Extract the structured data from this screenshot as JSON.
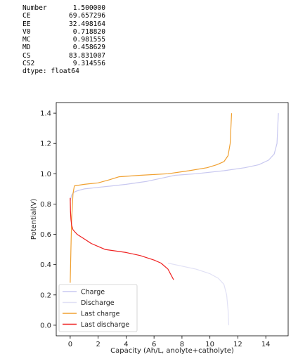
{
  "output": {
    "rows": [
      {
        "key": "Number",
        "value": "1.500000"
      },
      {
        "key": "CE",
        "value": "69.657296"
      },
      {
        "key": "EE",
        "value": "32.498164"
      },
      {
        "key": "V0",
        "value": "0.718820"
      },
      {
        "key": "MC",
        "value": "0.981555"
      },
      {
        "key": "MD",
        "value": "0.458629"
      },
      {
        "key": "CS",
        "value": "83.831007"
      },
      {
        "key": "CS2",
        "value": "9.314556"
      }
    ],
    "dtype": "dtype: float64"
  },
  "chart_data": {
    "type": "line",
    "title": "",
    "xlabel": "Capacity (Ah/L, anolyte+catholyte)",
    "ylabel": "Potential(V)",
    "xlim": [
      -1.0,
      15.6
    ],
    "ylim": [
      -0.07,
      1.47
    ],
    "xticks": [
      0,
      2,
      4,
      6,
      8,
      10,
      12,
      14
    ],
    "yticks": [
      0.0,
      0.2,
      0.4,
      0.6,
      0.8,
      1.0,
      1.2,
      1.4
    ],
    "xtick_labels": [
      "0",
      "2",
      "4",
      "6",
      "8",
      "10",
      "12",
      "14"
    ],
    "ytick_labels": [
      "0.0",
      "0.2",
      "0.4",
      "0.6",
      "0.8",
      "1.0",
      "1.2",
      "1.4"
    ],
    "grid": false,
    "legend_position": "lower-left",
    "series": [
      {
        "name": "Charge",
        "color": "#c8c8f0",
        "points": [
          [
            0.0,
            0.82
          ],
          [
            0.1,
            0.86
          ],
          [
            0.3,
            0.88
          ],
          [
            0.6,
            0.89
          ],
          [
            1.0,
            0.9
          ],
          [
            2.0,
            0.91
          ],
          [
            3.0,
            0.92
          ],
          [
            4.0,
            0.93
          ],
          [
            5.5,
            0.95
          ],
          [
            6.5,
            0.97
          ],
          [
            7.5,
            0.99
          ],
          [
            9.0,
            1.0
          ],
          [
            11.0,
            1.02
          ],
          [
            12.5,
            1.04
          ],
          [
            13.5,
            1.06
          ],
          [
            14.2,
            1.09
          ],
          [
            14.6,
            1.13
          ],
          [
            14.8,
            1.2
          ],
          [
            14.85,
            1.3
          ],
          [
            14.9,
            1.4
          ]
        ]
      },
      {
        "name": "Discharge",
        "color": "#e1e1f5",
        "points": [
          [
            7.0,
            0.41
          ],
          [
            8.0,
            0.39
          ],
          [
            9.0,
            0.37
          ],
          [
            10.0,
            0.34
          ],
          [
            10.6,
            0.31
          ],
          [
            11.0,
            0.27
          ],
          [
            11.2,
            0.2
          ],
          [
            11.3,
            0.1
          ],
          [
            11.35,
            0.0
          ]
        ]
      },
      {
        "name": "Last charge",
        "color": "#f0a030",
        "points": [
          [
            0.0,
            0.28
          ],
          [
            0.05,
            0.5
          ],
          [
            0.1,
            0.7
          ],
          [
            0.2,
            0.87
          ],
          [
            0.3,
            0.92
          ],
          [
            1.0,
            0.93
          ],
          [
            2.0,
            0.94
          ],
          [
            2.8,
            0.96
          ],
          [
            3.5,
            0.98
          ],
          [
            5.0,
            0.99
          ],
          [
            7.0,
            1.0
          ],
          [
            8.5,
            1.02
          ],
          [
            9.8,
            1.04
          ],
          [
            10.5,
            1.06
          ],
          [
            11.0,
            1.08
          ],
          [
            11.3,
            1.12
          ],
          [
            11.45,
            1.2
          ],
          [
            11.5,
            1.3
          ],
          [
            11.55,
            1.4
          ]
        ]
      },
      {
        "name": "Last discharge",
        "color": "#ef2020",
        "points": [
          [
            0.0,
            0.84
          ],
          [
            0.02,
            0.75
          ],
          [
            0.05,
            0.7
          ],
          [
            0.1,
            0.66
          ],
          [
            0.2,
            0.63
          ],
          [
            0.5,
            0.6
          ],
          [
            1.0,
            0.57
          ],
          [
            1.5,
            0.54
          ],
          [
            2.0,
            0.52
          ],
          [
            2.5,
            0.5
          ],
          [
            4.0,
            0.48
          ],
          [
            5.0,
            0.46
          ],
          [
            6.0,
            0.43
          ],
          [
            6.5,
            0.41
          ],
          [
            7.0,
            0.37
          ],
          [
            7.4,
            0.3
          ]
        ]
      }
    ]
  }
}
